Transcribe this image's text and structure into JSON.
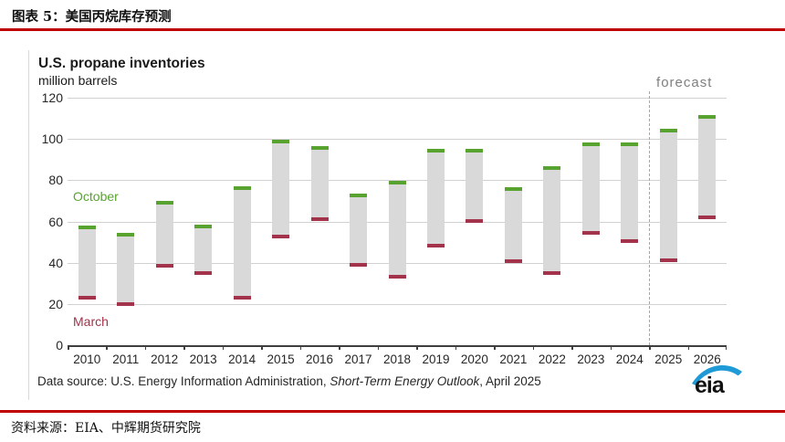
{
  "doc": {
    "header_title": "图表 5：美国丙烷库存预测",
    "footer_source": "资料来源：EIA、中辉期货研究院",
    "accent_red": "#c00000"
  },
  "chart": {
    "title": "U.S. propane inventories",
    "subtitle": "million barrels",
    "logo_text": "eia",
    "logo_blue": "#1e9bd7",
    "datasource": {
      "prefix": "Data source: U.S. Energy Information Administration, ",
      "italic": "Short-Term Energy Outlook",
      "suffix": ", April 2025"
    }
  },
  "chart_data": {
    "type": "bar",
    "subtype": "floating-range-columns",
    "title": "U.S. propane inventories",
    "ylabel": "million barrels",
    "categories": [
      "2010",
      "2011",
      "2012",
      "2013",
      "2014",
      "2015",
      "2016",
      "2017",
      "2018",
      "2019",
      "2020",
      "2021",
      "2022",
      "2023",
      "2024",
      "2025",
      "2026"
    ],
    "series": [
      {
        "name": "March",
        "role": "range-low",
        "color": "#a2334a",
        "values": [
          24,
          21,
          39.5,
          36,
          24,
          53.5,
          62,
          40,
          34,
          49,
          61,
          41.5,
          36,
          55.5,
          51.5,
          42,
          63
        ]
      },
      {
        "name": "October",
        "role": "range-high",
        "color": "#58a32f",
        "values": [
          58,
          54.5,
          70,
          58.5,
          77,
          99.5,
          96.5,
          73.5,
          79.5,
          95,
          95,
          76.5,
          87,
          98.5,
          98.5,
          105,
          111.5
        ]
      }
    ],
    "bar_body_color": "#d9d9d9",
    "ylim": [
      0,
      120
    ],
    "ytick_step": 20,
    "grid": "horizontal",
    "legend_position": "in-plot-text-labels",
    "forecast": {
      "label": "forecast",
      "start_category": "2025",
      "divider_style": "dashed"
    }
  }
}
